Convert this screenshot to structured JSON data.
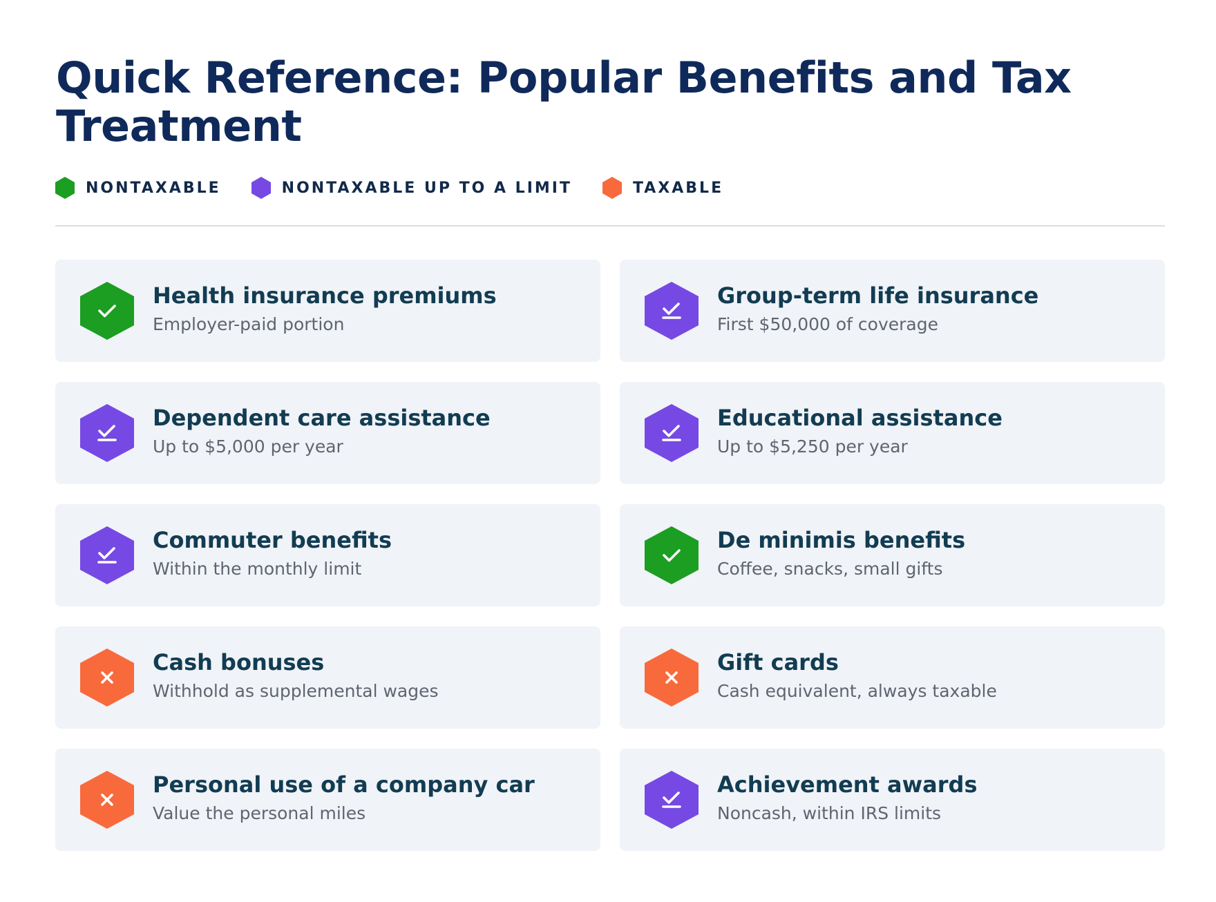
{
  "title": "Quick Reference: Popular Benefits and Tax Treatment",
  "colors": {
    "nontaxable": "#1b9e21",
    "limit": "#7649e4",
    "taxable": "#f86a3c"
  },
  "legend": [
    {
      "label": "NONTAXABLE",
      "status": "nontaxable"
    },
    {
      "label": "NONTAXABLE UP TO A LIMIT",
      "status": "limit"
    },
    {
      "label": "TAXABLE",
      "status": "taxable"
    }
  ],
  "cards": [
    {
      "title": "Health insurance premiums",
      "subtitle": "Employer-paid portion",
      "status": "nontaxable",
      "icon": "check-icon"
    },
    {
      "title": "Group-term life insurance",
      "subtitle": "First $50,000 of coverage",
      "status": "limit",
      "icon": "check-limit-icon"
    },
    {
      "title": "Dependent care assistance",
      "subtitle": "Up to $5,000 per year",
      "status": "limit",
      "icon": "check-limit-icon"
    },
    {
      "title": "Educational assistance",
      "subtitle": "Up to $5,250 per year",
      "status": "limit",
      "icon": "check-limit-icon"
    },
    {
      "title": "Commuter benefits",
      "subtitle": "Within the monthly limit",
      "status": "limit",
      "icon": "check-limit-icon"
    },
    {
      "title": "De minimis benefits",
      "subtitle": "Coffee, snacks, small gifts",
      "status": "nontaxable",
      "icon": "check-icon"
    },
    {
      "title": "Cash bonuses",
      "subtitle": "Withhold as supplemental wages",
      "status": "taxable",
      "icon": "x-icon"
    },
    {
      "title": "Gift cards",
      "subtitle": "Cash equivalent, always taxable",
      "status": "taxable",
      "icon": "x-icon"
    },
    {
      "title": "Personal use of a company car",
      "subtitle": "Value the personal miles",
      "status": "taxable",
      "icon": "x-icon"
    },
    {
      "title": "Achievement awards",
      "subtitle": "Noncash, within IRS limits",
      "status": "limit",
      "icon": "check-limit-icon"
    }
  ]
}
